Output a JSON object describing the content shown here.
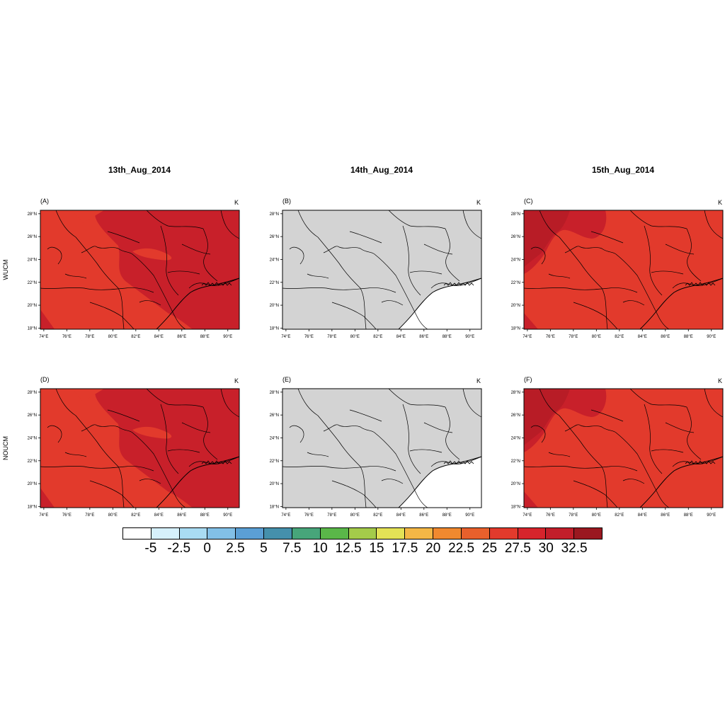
{
  "column_titles": [
    "13th_Aug_2014",
    "14th_Aug_2014",
    "15th_Aug_2014"
  ],
  "row_labels": [
    "WUCM",
    "NOUCM"
  ],
  "panels": [
    {
      "letter": "(A)",
      "unit": "K",
      "field": "warm"
    },
    {
      "letter": "(B)",
      "unit": "K",
      "field": "missing"
    },
    {
      "letter": "(C)",
      "unit": "K",
      "field": "uniform"
    },
    {
      "letter": "(D)",
      "unit": "K",
      "field": "warm"
    },
    {
      "letter": "(E)",
      "unit": "K",
      "field": "missing"
    },
    {
      "letter": "(F)",
      "unit": "K",
      "field": "uniform"
    }
  ],
  "axes": {
    "lon_ticks": [
      "74°E",
      "76°E",
      "78°E",
      "80°E",
      "82°E",
      "84°E",
      "86°E",
      "88°E",
      "90°E"
    ],
    "lat_ticks": [
      "28°N",
      "26°N",
      "24°N",
      "22°N",
      "20°N",
      "18°N"
    ],
    "lon_range": [
      73.7,
      91.0
    ],
    "lat_range": [
      17.9,
      28.3
    ]
  },
  "colorbar": {
    "labels": [
      "-5",
      "-2.5",
      "0",
      "2.5",
      "5",
      "7.5",
      "10",
      "12.5",
      "15",
      "17.5",
      "20",
      "22.5",
      "25",
      "27.5",
      "30",
      "32.5"
    ],
    "colors": [
      "#ffffff",
      "#d6f0fb",
      "#a9dcf3",
      "#82c0e7",
      "#5b9fd5",
      "#4590ac",
      "#47a57a",
      "#5ab749",
      "#a4cb4a",
      "#e4e256",
      "#f4b746",
      "#f0892f",
      "#e8602c",
      "#e23a2c",
      "#d6242c",
      "#c21e2a",
      "#9a1820"
    ]
  },
  "map_colors": {
    "missing": "#d3d3d3",
    "light_red": "#e23a2c",
    "dark_red": "#c8202a",
    "darkest_red": "#b81c26",
    "border": "#000000"
  }
}
